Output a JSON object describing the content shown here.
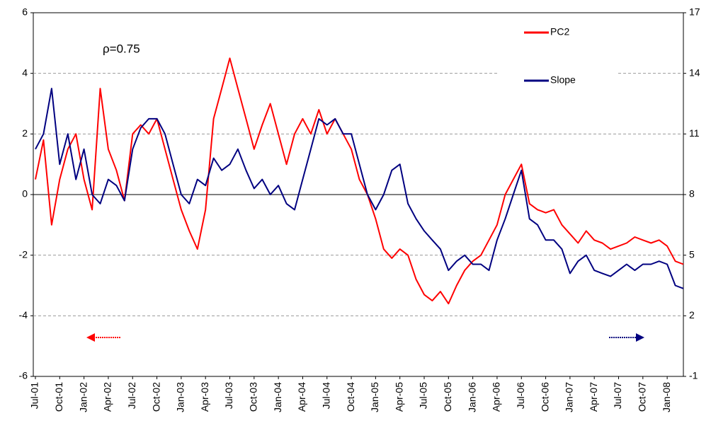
{
  "chart_data": {
    "type": "line",
    "annotation": "ρ=0.75",
    "categories": [
      "Jul-01",
      null,
      null,
      "Oct-01",
      null,
      null,
      "Jan-02",
      null,
      null,
      "Apr-02",
      null,
      null,
      "Jul-02",
      null,
      null,
      "Oct-02",
      null,
      null,
      "Jan-03",
      null,
      null,
      "Apr-03",
      null,
      null,
      "Jul-03",
      null,
      null,
      "Oct-03",
      null,
      null,
      "Jan-04",
      null,
      null,
      "Apr-04",
      null,
      null,
      "Jul-04",
      null,
      null,
      "Oct-04",
      null,
      null,
      "Jan-05",
      null,
      null,
      "Apr-05",
      null,
      null,
      "Jul-05",
      null,
      null,
      "Oct-05",
      null,
      null,
      "Jan-06",
      null,
      null,
      "Apr-06",
      null,
      null,
      "Jul-06",
      null,
      null,
      "Oct-06",
      null,
      null,
      "Jan-07",
      null,
      null,
      "Apr-07",
      null,
      null,
      "Jul-07",
      null,
      null,
      "Oct-07",
      null,
      null,
      "Jan-08",
      null,
      null
    ],
    "series": [
      {
        "name": "PC2",
        "color": "#ff0000",
        "axis": "y",
        "values": [
          0.5,
          1.8,
          -1.0,
          0.5,
          1.5,
          2.0,
          0.5,
          -0.5,
          3.5,
          1.5,
          0.8,
          -0.2,
          2.0,
          2.3,
          2.0,
          2.5,
          1.5,
          0.5,
          -0.5,
          -1.2,
          -1.8,
          -0.5,
          2.5,
          3.5,
          4.5,
          3.5,
          2.5,
          1.5,
          2.3,
          3.0,
          2.0,
          1.0,
          2.0,
          2.5,
          2.0,
          2.8,
          2.0,
          2.5,
          2.0,
          1.5,
          0.5,
          0,
          -0.8,
          -1.8,
          -2.1,
          -1.8,
          -2.0,
          -2.8,
          -3.3,
          -3.5,
          -3.2,
          -3.6,
          -3.0,
          -2.5,
          -2.2,
          -2.0,
          -1.5,
          -1.0,
          0,
          0.5,
          1.0,
          -0.3,
          -0.5,
          -0.6,
          -0.5,
          -1.0,
          -1.3,
          -1.6,
          -1.2,
          -1.5,
          -1.6,
          -1.8,
          -1.7,
          -1.6,
          -1.4,
          -1.5,
          -1.6,
          -1.5,
          -1.7,
          -2.2,
          -2.3
        ]
      },
      {
        "name": "Slope",
        "color": "#000080",
        "axis": "y2",
        "values": [
          10.25,
          11,
          13.25,
          9.5,
          11,
          8.75,
          10.25,
          8,
          7.55,
          8.75,
          8.45,
          7.7,
          10.25,
          11.3,
          11.75,
          11.75,
          11,
          9.5,
          8,
          7.55,
          8.75,
          8.45,
          9.8,
          9.2,
          9.5,
          10.25,
          9.2,
          8.3,
          8.75,
          8,
          8.45,
          7.55,
          7.25,
          8.75,
          10.25,
          11.75,
          11.45,
          11.75,
          11,
          11,
          9.5,
          8,
          7.25,
          8,
          9.2,
          9.5,
          7.55,
          6.8,
          6.2,
          5.75,
          5.3,
          4.25,
          4.7,
          5,
          4.55,
          4.55,
          4.25,
          5.75,
          6.8,
          8,
          9.2,
          6.8,
          6.5,
          5.75,
          5.75,
          5.3,
          4.1,
          4.7,
          5,
          4.25,
          4.1,
          3.95,
          4.25,
          4.55,
          4.25,
          4.55,
          4.55,
          4.7,
          4.55,
          3.5,
          3.35
        ]
      }
    ],
    "ylim": [
      -6,
      6
    ],
    "yticks": [
      -6,
      -4,
      -2,
      0,
      2,
      4,
      6
    ],
    "y2lim": [
      -1,
      17
    ],
    "y2ticks": [
      -1,
      2,
      5,
      8,
      11,
      14,
      17
    ],
    "grid": true,
    "legend": "upper right"
  }
}
